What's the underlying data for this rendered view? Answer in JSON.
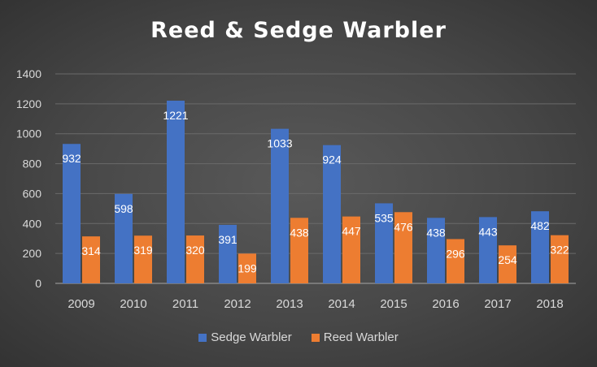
{
  "chart_data": {
    "type": "bar",
    "title": "Reed & Sedge Warbler",
    "categories": [
      "2009",
      "2010",
      "2011",
      "2012",
      "2013",
      "2014",
      "2015",
      "2016",
      "2017",
      "2018"
    ],
    "series": [
      {
        "name": "Sedge Warbler",
        "values": [
          932,
          598,
          1221,
          391,
          1033,
          924,
          535,
          438,
          443,
          482
        ],
        "color": "#4472c4"
      },
      {
        "name": "Reed Warbler",
        "values": [
          314,
          319,
          320,
          199,
          438,
          447,
          476,
          296,
          254,
          322
        ],
        "color": "#ed7d31"
      }
    ],
    "ylim": [
      0,
      1400
    ],
    "yticks": [
      0,
      200,
      400,
      600,
      800,
      1000,
      1200,
      1400
    ],
    "grid": true,
    "legend": "bottom"
  }
}
